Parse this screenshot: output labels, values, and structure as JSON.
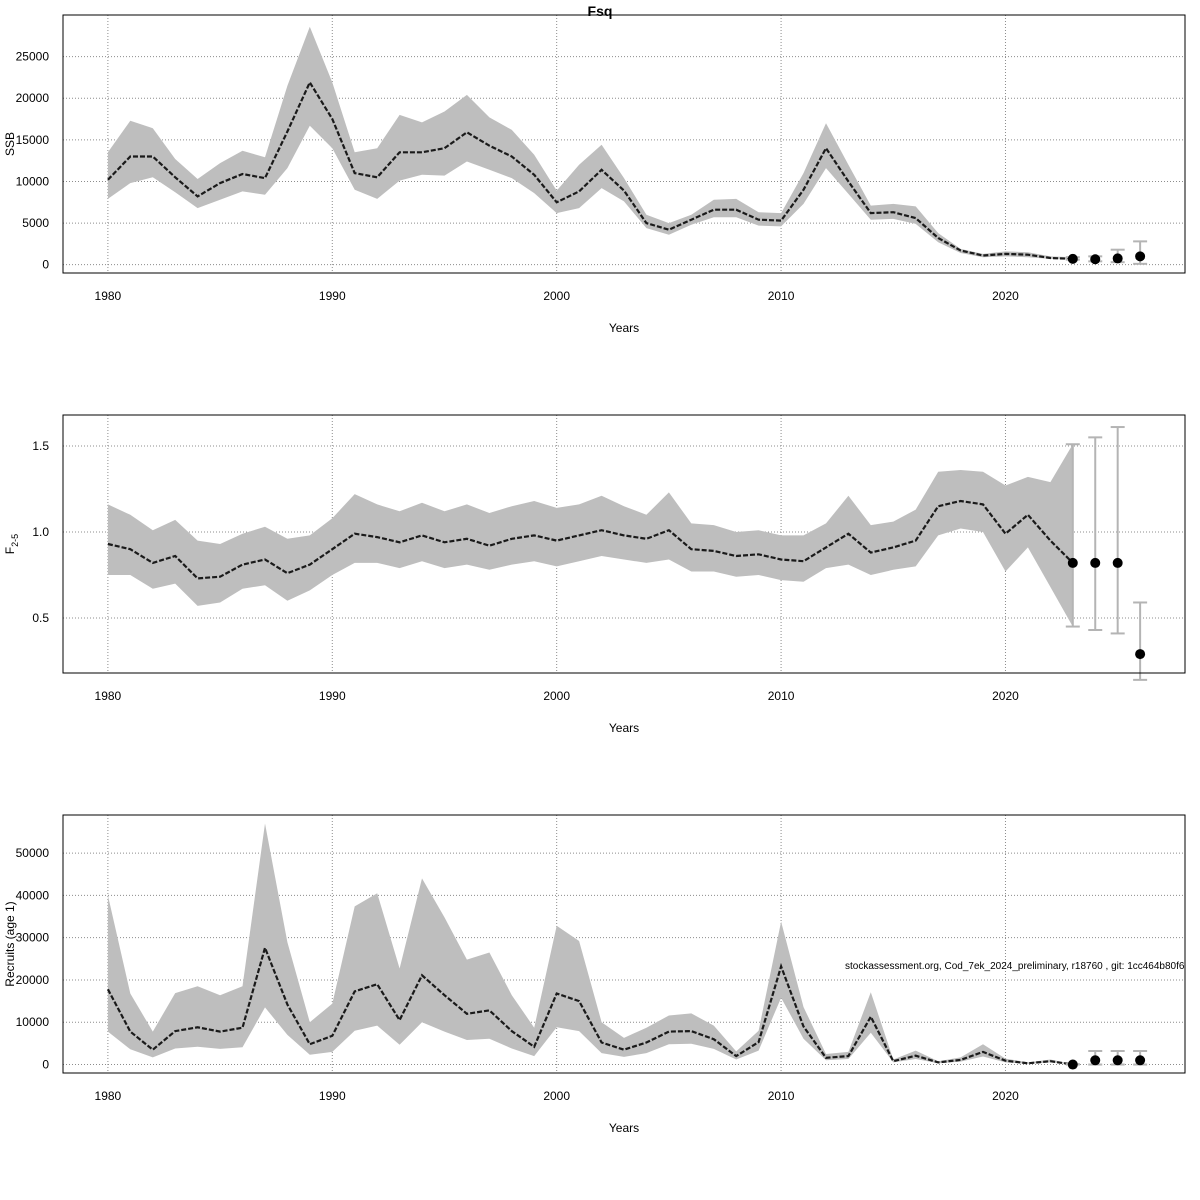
{
  "page_title": "Fsq",
  "footnote": "stockassessment.org, Cod_7ek_2024_preliminary, r18760 , git: 1cc464b80f6",
  "colors": {
    "band": "#bebebe",
    "line": "#1a1a1a",
    "grid": "#8c8c8c",
    "errorbar": "#b4b4b4",
    "point": "#000000"
  },
  "chart_data": [
    {
      "type": "line",
      "title": "Fsq",
      "xlabel": "Years",
      "ylabel": "SSB",
      "ylabel_sub": "",
      "xlim": [
        1978,
        2028
      ],
      "ylim": [
        -1000,
        30000
      ],
      "xticks": [
        1980,
        1990,
        2000,
        2010,
        2020
      ],
      "yticks": [
        0,
        5000,
        10000,
        15000,
        20000,
        25000
      ],
      "grid": true,
      "x": [
        1980,
        1981,
        1982,
        1983,
        1984,
        1985,
        1986,
        1987,
        1988,
        1989,
        1990,
        1991,
        1992,
        1993,
        1994,
        1995,
        1996,
        1997,
        1998,
        1999,
        2000,
        2001,
        2002,
        2003,
        2004,
        2005,
        2006,
        2007,
        2008,
        2009,
        2010,
        2011,
        2012,
        2013,
        2014,
        2015,
        2016,
        2017,
        2018,
        2019,
        2020,
        2021,
        2022,
        2023
      ],
      "estimate": [
        10200,
        13000,
        13000,
        10500,
        8200,
        9800,
        10900,
        10400,
        16000,
        21900,
        17500,
        11000,
        10500,
        13500,
        13500,
        14000,
        15900,
        14300,
        13000,
        10800,
        7500,
        8800,
        11400,
        8900,
        5000,
        4200,
        5400,
        6600,
        6600,
        5400,
        5300,
        9000,
        14000,
        10000,
        6200,
        6300,
        5600,
        3200,
        1700,
        1100,
        1300,
        1200,
        800,
        700
      ],
      "lower": [
        7900,
        9800,
        10500,
        8700,
        6800,
        7800,
        8800,
        8400,
        11600,
        16700,
        14000,
        9000,
        7900,
        10100,
        10800,
        10700,
        12400,
        11400,
        10400,
        8600,
        6200,
        6800,
        9200,
        7600,
        4400,
        3600,
        4800,
        5700,
        5700,
        4700,
        4600,
        7300,
        11600,
        8500,
        5400,
        5500,
        4900,
        2700,
        1400,
        900,
        1000,
        900,
        700,
        600
      ],
      "upper": [
        13500,
        17300,
        16400,
        12700,
        10300,
        12200,
        13700,
        12900,
        21500,
        28600,
        21900,
        13500,
        14000,
        18000,
        17100,
        18400,
        20400,
        17700,
        16200,
        13200,
        8900,
        12000,
        14400,
        10400,
        6000,
        5000,
        6000,
        7800,
        7900,
        6300,
        6200,
        11000,
        17000,
        12000,
        7100,
        7300,
        7000,
        3800,
        1900,
        1300,
        1600,
        1500,
        1000,
        900
      ],
      "forecast": [
        {
          "x": 2023,
          "y": 700,
          "lower": 600,
          "upper": 900
        },
        {
          "x": 2024,
          "y": 650,
          "lower": 400,
          "upper": 1000
        },
        {
          "x": 2025,
          "y": 750,
          "lower": 300,
          "upper": 1800
        },
        {
          "x": 2026,
          "y": 1000,
          "lower": 100,
          "upper": 2800
        }
      ]
    },
    {
      "type": "line",
      "title": "",
      "xlabel": "Years",
      "ylabel": "F",
      "ylabel_sub": "2-5",
      "xlim": [
        1978,
        2028
      ],
      "ylim": [
        0.18,
        1.68
      ],
      "xticks": [
        1980,
        1990,
        2000,
        2010,
        2020
      ],
      "yticks": [
        0.5,
        1.0,
        1.5
      ],
      "grid": true,
      "x": [
        1980,
        1981,
        1982,
        1983,
        1984,
        1985,
        1986,
        1987,
        1988,
        1989,
        1990,
        1991,
        1992,
        1993,
        1994,
        1995,
        1996,
        1997,
        1998,
        1999,
        2000,
        2001,
        2002,
        2003,
        2004,
        2005,
        2006,
        2007,
        2008,
        2009,
        2010,
        2011,
        2012,
        2013,
        2014,
        2015,
        2016,
        2017,
        2018,
        2019,
        2020,
        2021,
        2022,
        2023
      ],
      "estimate": [
        0.93,
        0.9,
        0.82,
        0.86,
        0.73,
        0.74,
        0.81,
        0.84,
        0.76,
        0.81,
        0.9,
        0.99,
        0.97,
        0.94,
        0.98,
        0.94,
        0.96,
        0.92,
        0.96,
        0.98,
        0.95,
        0.98,
        1.01,
        0.98,
        0.96,
        1.01,
        0.9,
        0.89,
        0.86,
        0.87,
        0.84,
        0.83,
        0.91,
        0.99,
        0.88,
        0.91,
        0.95,
        1.15,
        1.18,
        1.16,
        0.99,
        1.1,
        0.95,
        0.82
      ],
      "lower": [
        0.75,
        0.75,
        0.67,
        0.7,
        0.57,
        0.59,
        0.67,
        0.69,
        0.6,
        0.66,
        0.75,
        0.82,
        0.82,
        0.79,
        0.83,
        0.79,
        0.81,
        0.78,
        0.81,
        0.83,
        0.8,
        0.83,
        0.86,
        0.84,
        0.82,
        0.84,
        0.77,
        0.77,
        0.74,
        0.75,
        0.72,
        0.71,
        0.79,
        0.81,
        0.75,
        0.78,
        0.8,
        0.98,
        1.02,
        1.0,
        0.77,
        0.91,
        0.68,
        0.45
      ],
      "upper": [
        1.16,
        1.1,
        1.01,
        1.07,
        0.95,
        0.93,
        0.99,
        1.03,
        0.96,
        0.98,
        1.08,
        1.22,
        1.16,
        1.12,
        1.17,
        1.12,
        1.16,
        1.11,
        1.15,
        1.18,
        1.14,
        1.16,
        1.21,
        1.15,
        1.1,
        1.23,
        1.05,
        1.04,
        1.0,
        1.01,
        0.98,
        0.98,
        1.05,
        1.21,
        1.04,
        1.06,
        1.13,
        1.35,
        1.36,
        1.35,
        1.27,
        1.32,
        1.29,
        1.51
      ],
      "forecast": [
        {
          "x": 2023,
          "y": 0.82,
          "lower": 0.45,
          "upper": 1.51
        },
        {
          "x": 2024,
          "y": 0.82,
          "lower": 0.43,
          "upper": 1.55
        },
        {
          "x": 2025,
          "y": 0.82,
          "lower": 0.41,
          "upper": 1.61
        },
        {
          "x": 2026,
          "y": 0.29,
          "lower": 0.14,
          "upper": 0.59
        }
      ]
    },
    {
      "type": "line",
      "title": "",
      "xlabel": "Years",
      "ylabel": "Recruits (age 1)",
      "ylabel_sub": "",
      "xlim": [
        1978,
        2028
      ],
      "ylim": [
        -2000,
        59000
      ],
      "xticks": [
        1980,
        1990,
        2000,
        2010,
        2020
      ],
      "yticks": [
        0,
        10000,
        20000,
        30000,
        40000,
        50000
      ],
      "grid": true,
      "x": [
        1980,
        1981,
        1982,
        1983,
        1984,
        1985,
        1986,
        1987,
        1988,
        1989,
        1990,
        1991,
        1992,
        1993,
        1994,
        1995,
        1996,
        1997,
        1998,
        1999,
        2000,
        2001,
        2002,
        2003,
        2004,
        2005,
        2006,
        2007,
        2008,
        2009,
        2010,
        2011,
        2012,
        2013,
        2014,
        2015,
        2016,
        2017,
        2018,
        2019,
        2020,
        2021,
        2022,
        2023
      ],
      "estimate": [
        17800,
        7800,
        3500,
        7900,
        8800,
        7800,
        8700,
        27600,
        14200,
        4800,
        6800,
        17300,
        19000,
        10500,
        21100,
        16400,
        12000,
        12800,
        7900,
        4200,
        16800,
        15000,
        5200,
        3500,
        5200,
        7800,
        7900,
        6000,
        2000,
        5300,
        23200,
        9000,
        1600,
        2000,
        11300,
        800,
        2100,
        500,
        1100,
        3000,
        900,
        300,
        800,
        0
      ],
      "lower": [
        7800,
        3600,
        1700,
        3800,
        4200,
        3700,
        4100,
        13500,
        7000,
        2300,
        3000,
        8000,
        9200,
        4700,
        10000,
        7800,
        5800,
        6100,
        3800,
        2000,
        8800,
        7900,
        2700,
        1800,
        2700,
        4800,
        4900,
        3700,
        1200,
        3300,
        15800,
        6100,
        1000,
        1300,
        7500,
        500,
        1300,
        300,
        700,
        1900,
        500,
        200,
        500,
        0
      ],
      "upper": [
        40000,
        16800,
        7800,
        16900,
        18500,
        16400,
        18500,
        57000,
        28900,
        10000,
        14400,
        37400,
        40500,
        22700,
        44000,
        34800,
        24800,
        26500,
        16400,
        8700,
        32800,
        29200,
        10000,
        6300,
        8700,
        11600,
        12100,
        9200,
        3100,
        8000,
        33800,
        13600,
        2500,
        3000,
        17100,
        1200,
        3300,
        800,
        1700,
        4800,
        1400,
        500,
        1200,
        100
      ],
      "forecast": [
        {
          "x": 2023,
          "y": 0,
          "lower": 0,
          "upper": 100
        },
        {
          "x": 2024,
          "y": 1000,
          "lower": 0,
          "upper": 3200
        },
        {
          "x": 2025,
          "y": 1000,
          "lower": 0,
          "upper": 3200
        },
        {
          "x": 2026,
          "y": 1000,
          "lower": 0,
          "upper": 3200
        }
      ]
    }
  ]
}
